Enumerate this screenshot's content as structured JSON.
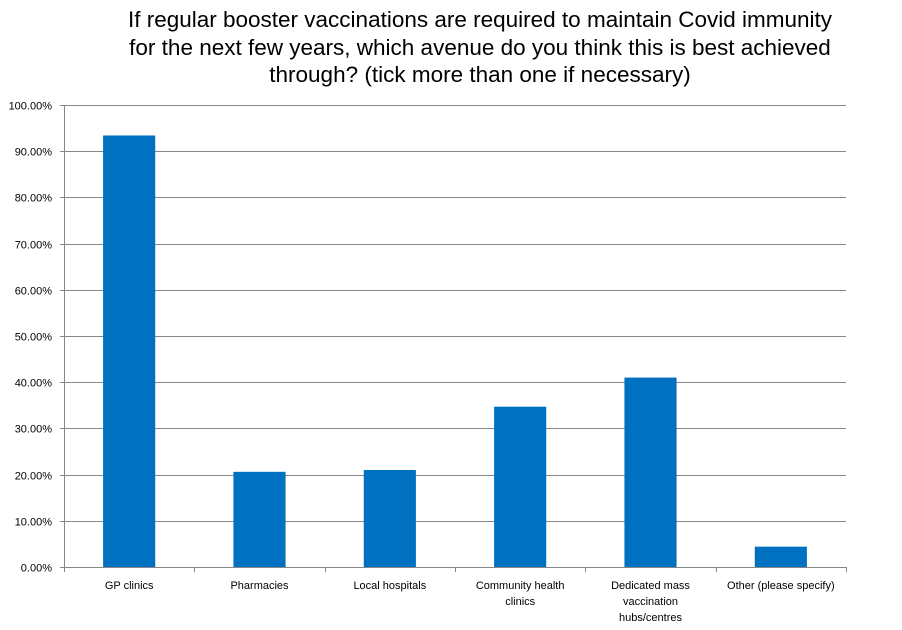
{
  "chart_data": {
    "type": "bar",
    "title": "If regular booster vaccinations are required to maintain Covid immunity\nfor the next few years, which avenue do you think this is best achieved\nthrough? (tick more than one if necessary)",
    "categories": [
      [
        "GP clinics"
      ],
      [
        "Pharmacies"
      ],
      [
        "Local hospitals"
      ],
      [
        "Community health",
        "clinics"
      ],
      [
        "Dedicated mass",
        "vaccination",
        "hubs/centres"
      ],
      [
        "Other (please specify)"
      ]
    ],
    "values": [
      93.4,
      20.6,
      21.0,
      34.7,
      41.0,
      4.4
    ],
    "ylim": [
      0,
      100
    ],
    "yticks": [
      0,
      10,
      20,
      30,
      40,
      50,
      60,
      70,
      80,
      90,
      100
    ],
    "ytick_labels": [
      "0.00%",
      "10.00%",
      "20.00%",
      "30.00%",
      "40.00%",
      "50.00%",
      "60.00%",
      "70.00%",
      "80.00%",
      "90.00%",
      "100.00%"
    ],
    "xlabel": "",
    "ylabel": "",
    "grid": true,
    "bar_color": "#0070C0",
    "gridline_color": "#868686"
  }
}
